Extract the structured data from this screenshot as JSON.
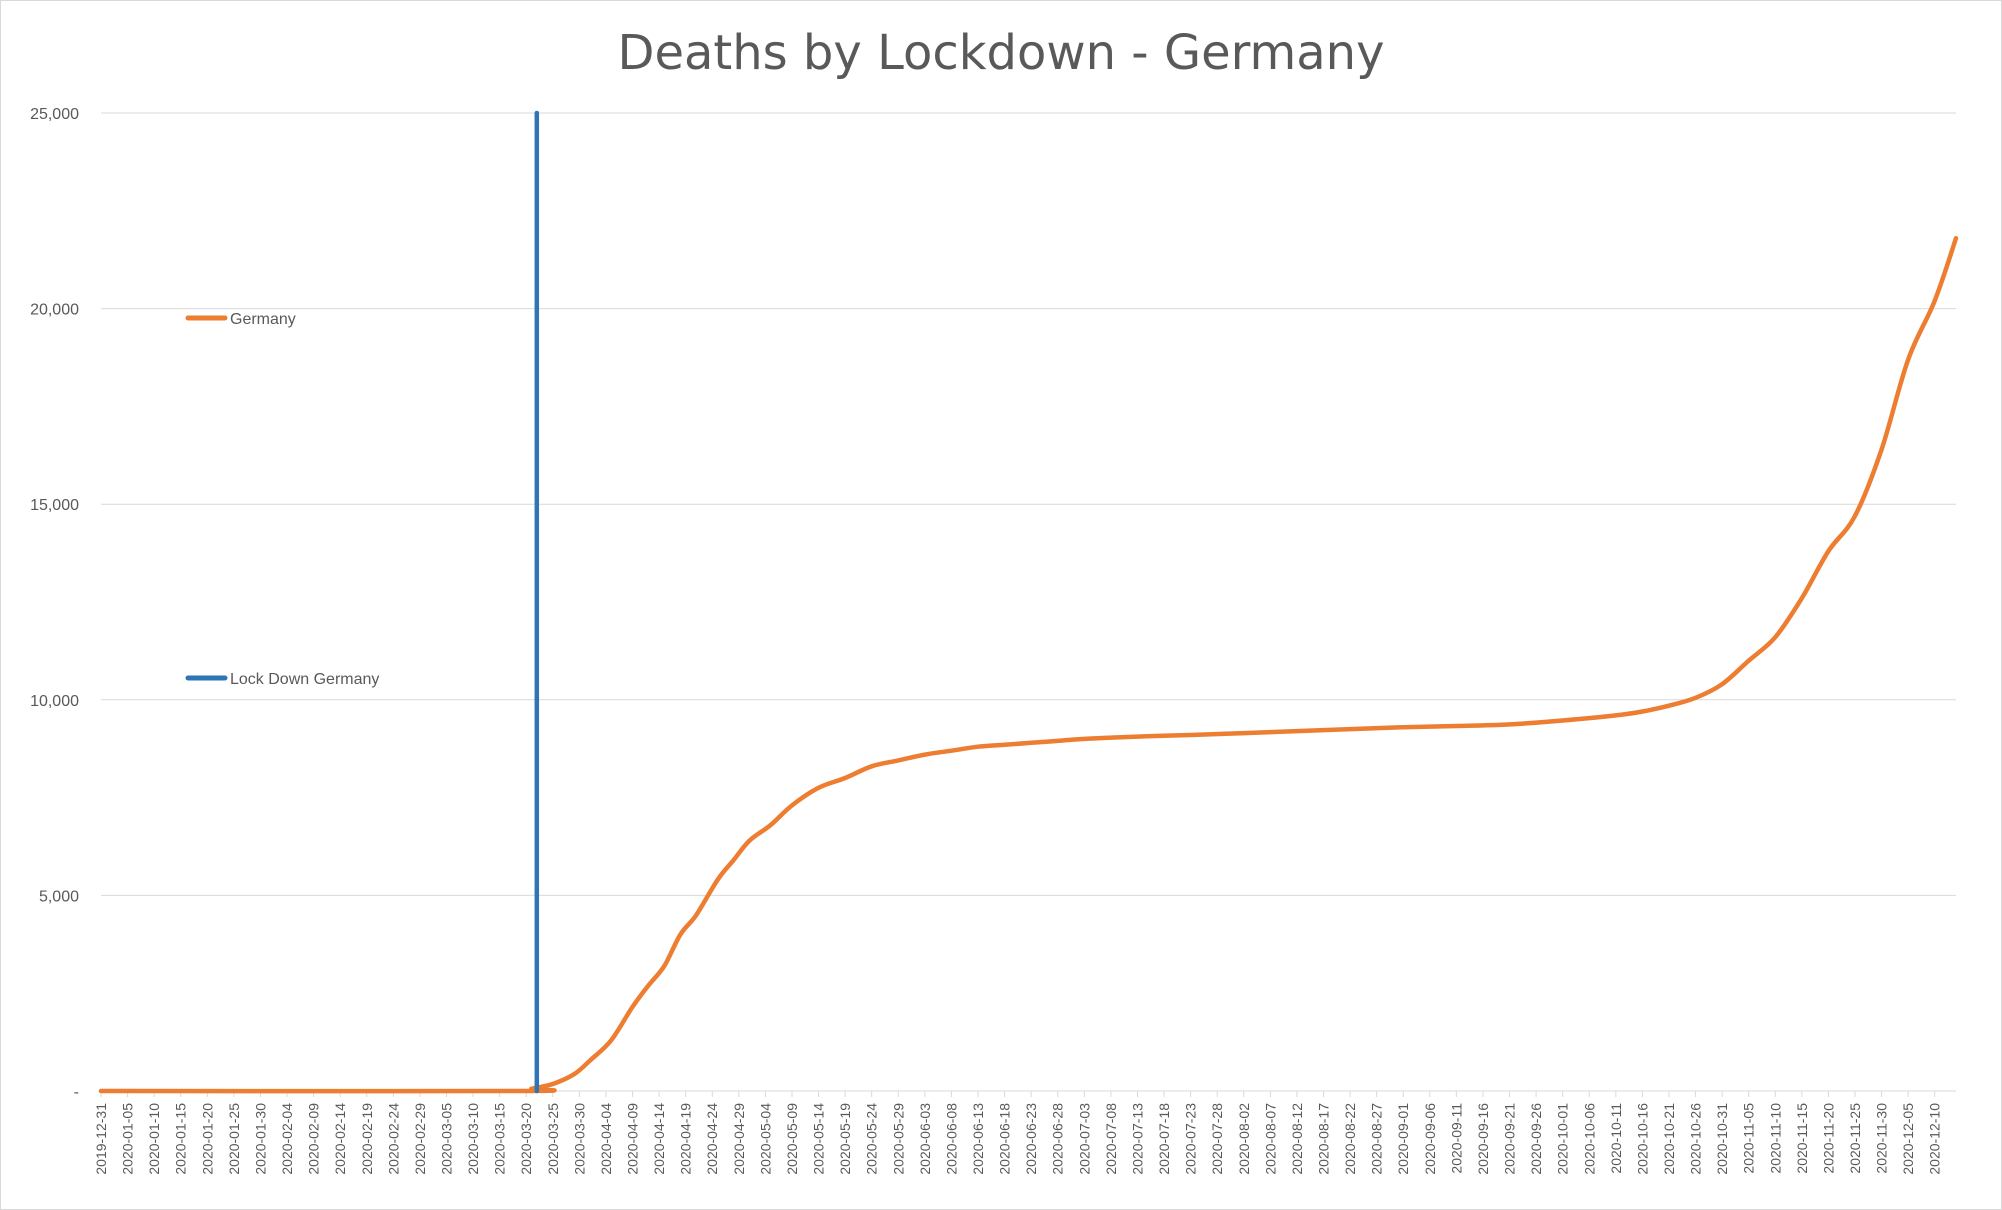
{
  "chart_data": {
    "type": "line",
    "title": "Deaths by Lockdown - Germany",
    "xlabel": "",
    "ylabel": "",
    "x_start": "2019-12-31",
    "x_end": "2020-12-14",
    "ylim": [
      0,
      25000
    ],
    "y_ticks": [
      {
        "value": 0,
        "label": "-"
      },
      {
        "value": 5000,
        "label": "5,000"
      },
      {
        "value": 10000,
        "label": "10,000"
      },
      {
        "value": 15000,
        "label": "15,000"
      },
      {
        "value": 20000,
        "label": "20,000"
      },
      {
        "value": 25000,
        "label": "25,000"
      }
    ],
    "x_tick_labels": [
      "2019-12-31",
      "2020-01-05",
      "2020-01-10",
      "2020-01-15",
      "2020-01-20",
      "2020-01-25",
      "2020-01-30",
      "2020-02-04",
      "2020-02-09",
      "2020-02-14",
      "2020-02-19",
      "2020-02-24",
      "2020-02-29",
      "2020-03-05",
      "2020-03-10",
      "2020-03-15",
      "2020-03-20",
      "2020-03-25",
      "2020-03-30",
      "2020-04-04",
      "2020-04-09",
      "2020-04-14",
      "2020-04-19",
      "2020-04-24",
      "2020-04-29",
      "2020-05-04",
      "2020-05-09",
      "2020-05-14",
      "2020-05-19",
      "2020-05-24",
      "2020-05-29",
      "2020-06-03",
      "2020-06-08",
      "2020-06-13",
      "2020-06-18",
      "2020-06-23",
      "2020-06-28",
      "2020-07-03",
      "2020-07-08",
      "2020-07-13",
      "2020-07-18",
      "2020-07-23",
      "2020-07-28",
      "2020-08-02",
      "2020-08-07",
      "2020-08-12",
      "2020-08-17",
      "2020-08-22",
      "2020-08-27",
      "2020-09-01",
      "2020-09-06",
      "2020-09-11",
      "2020-09-16",
      "2020-09-21",
      "2020-09-26",
      "2020-10-01",
      "2020-10-06",
      "2020-10-11",
      "2020-10-16",
      "2020-10-21",
      "2020-10-26",
      "2020-10-31",
      "2020-11-05",
      "2020-11-10",
      "2020-11-15",
      "2020-11-20",
      "2020-11-25",
      "2020-11-30",
      "2020-12-05",
      "2020-12-10"
    ],
    "grid": true,
    "legend_position": "left",
    "series": [
      {
        "name": "Germany",
        "color": "#ED7D31",
        "points": [
          [
            "2019-12-31",
            0
          ],
          [
            "2020-03-19",
            0
          ],
          [
            "2020-03-21",
            60
          ],
          [
            "2020-03-25",
            180
          ],
          [
            "2020-03-29",
            430
          ],
          [
            "2020-04-01",
            780
          ],
          [
            "2020-04-05",
            1300
          ],
          [
            "2020-04-09",
            2150
          ],
          [
            "2020-04-12",
            2700
          ],
          [
            "2020-04-15",
            3200
          ],
          [
            "2020-04-18",
            4000
          ],
          [
            "2020-04-21",
            4500
          ],
          [
            "2020-04-25",
            5400
          ],
          [
            "2020-04-28",
            5900
          ],
          [
            "2020-05-01",
            6400
          ],
          [
            "2020-05-05",
            6800
          ],
          [
            "2020-05-09",
            7300
          ],
          [
            "2020-05-14",
            7750
          ],
          [
            "2020-05-19",
            8000
          ],
          [
            "2020-05-24",
            8300
          ],
          [
            "2020-05-29",
            8450
          ],
          [
            "2020-06-03",
            8600
          ],
          [
            "2020-06-08",
            8700
          ],
          [
            "2020-06-13",
            8800
          ],
          [
            "2020-06-18",
            8850
          ],
          [
            "2020-06-23",
            8900
          ],
          [
            "2020-06-28",
            8950
          ],
          [
            "2020-07-03",
            9000
          ],
          [
            "2020-07-13",
            9060
          ],
          [
            "2020-07-23",
            9100
          ],
          [
            "2020-08-02",
            9150
          ],
          [
            "2020-08-12",
            9200
          ],
          [
            "2020-08-22",
            9250
          ],
          [
            "2020-09-01",
            9300
          ],
          [
            "2020-09-11",
            9330
          ],
          [
            "2020-09-21",
            9370
          ],
          [
            "2020-10-01",
            9470
          ],
          [
            "2020-10-11",
            9600
          ],
          [
            "2020-10-16",
            9700
          ],
          [
            "2020-10-21",
            9850
          ],
          [
            "2020-10-26",
            10050
          ],
          [
            "2020-10-31",
            10400
          ],
          [
            "2020-11-05",
            11000
          ],
          [
            "2020-11-10",
            11600
          ],
          [
            "2020-11-15",
            12600
          ],
          [
            "2020-11-20",
            13800
          ],
          [
            "2020-11-25",
            14700
          ],
          [
            "2020-11-30",
            16400
          ],
          [
            "2020-12-05",
            18700
          ],
          [
            "2020-12-10",
            20200
          ],
          [
            "2020-12-14",
            21800
          ]
        ]
      },
      {
        "name": "Lock Down Germany",
        "color": "#2E75B6",
        "points": [
          [
            "2020-03-22",
            0
          ],
          [
            "2020-03-22",
            25000
          ]
        ]
      }
    ]
  }
}
